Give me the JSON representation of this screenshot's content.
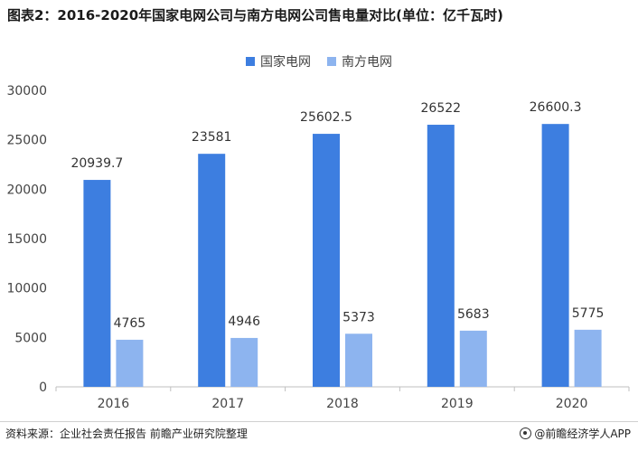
{
  "title": "图表2：2016-2020年国家电网公司与南方电网公司售电量对比(单位：亿千瓦时)",
  "footer": {
    "source": "资料来源：企业社会责任报告 前瞻产业研究院整理",
    "brand": "@前瞻经济学人APP"
  },
  "colors": {
    "series1": "#3d7ee0",
    "series2": "#8db4ef"
  },
  "chart_data": {
    "type": "bar",
    "categories": [
      "2016",
      "2017",
      "2018",
      "2019",
      "2020"
    ],
    "series": [
      {
        "name": "国家电网",
        "values": [
          20939.7,
          23581,
          25602.5,
          26522,
          26600.3
        ],
        "labels": [
          "20939.7",
          "23581",
          "25602.5",
          "26522",
          "26600.3"
        ]
      },
      {
        "name": "南方电网",
        "values": [
          4765,
          4946,
          5373,
          5683,
          5775
        ],
        "labels": [
          "4765",
          "4946",
          "5373",
          "5683",
          "5775"
        ]
      }
    ],
    "ylim": [
      0,
      30000
    ],
    "yticks": [
      0,
      5000,
      10000,
      15000,
      20000,
      25000,
      30000
    ],
    "ytick_labels": [
      "0",
      "5000",
      "10000",
      "15000",
      "20000",
      "25000",
      "30000"
    ],
    "legend_position": "top-center",
    "grid": false
  }
}
